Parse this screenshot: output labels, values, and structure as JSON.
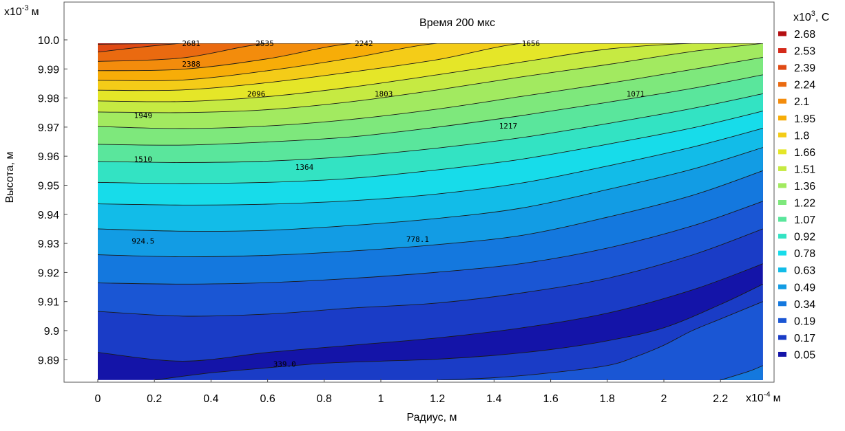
{
  "chart_data": {
    "type": "heatmap",
    "title": "Время 200 мкс",
    "xlabel": "Радиус, м",
    "ylabel": "Высота, м",
    "x_multiplier": "x10",
    "x_multiplier_exp": "-4",
    "x_multiplier_unit": "м",
    "y_multiplier": "x10",
    "y_multiplier_exp": "-3",
    "y_multiplier_unit": "м",
    "xlim": [
      -0.14,
      2.35
    ],
    "ylim": [
      9.883,
      10.0
    ],
    "x_ticks": [
      "0",
      "0.2",
      "0.4",
      "0.6",
      "0.8",
      "1",
      "1.2",
      "1.4",
      "1.6",
      "1.8",
      "2",
      "2.2"
    ],
    "x_tick_values": [
      0,
      0.2,
      0.4,
      0.6,
      0.8,
      1.0,
      1.2,
      1.4,
      1.6,
      1.8,
      2.0,
      2.2
    ],
    "y_ticks": [
      "10.0",
      "9.99",
      "9.98",
      "9.97",
      "9.96",
      "9.95",
      "9.94",
      "9.93",
      "9.92",
      "9.91",
      "9.9",
      "9.89"
    ],
    "y_tick_values": [
      10.0,
      9.99,
      9.98,
      9.97,
      9.96,
      9.95,
      9.94,
      9.93,
      9.92,
      9.91,
      9.9,
      9.89
    ],
    "data_x_range": [
      0,
      2.35
    ],
    "data_y_range": [
      9.883,
      9.9988
    ],
    "colorbar": {
      "unit_base": "x10",
      "unit_exp": "3",
      "unit_suffix": ", С",
      "labels": [
        "2.68",
        "2.53",
        "2.39",
        "2.24",
        "2.1",
        "1.95",
        "1.8",
        "1.66",
        "1.51",
        "1.36",
        "1.22",
        "1.07",
        "0.92",
        "0.78",
        "0.63",
        "0.49",
        "0.34",
        "0.19",
        "0.17",
        "0.05"
      ],
      "colors": [
        "#b40f12",
        "#d42a1a",
        "#e04a14",
        "#ea6a10",
        "#f38c0c",
        "#f7ad08",
        "#f4cc18",
        "#e5e628",
        "#c6ea42",
        "#a2ea60",
        "#7ee87c",
        "#5ae69c",
        "#33e3c3",
        "#17dcea",
        "#12bce8",
        "#129ce4",
        "#1478de",
        "#1a56d4",
        "#1a3cc6",
        "#1414a8"
      ]
    },
    "field": {
      "levels": [
        2681,
        2535,
        2388,
        2242,
        2096,
        1949,
        1803,
        1656,
        1510,
        1364,
        1217,
        1071,
        924.5,
        778.1,
        631.7,
        485.3,
        339.0,
        192.6
      ],
      "level_x": [
        0,
        0.3,
        0.6,
        0.9,
        1.2,
        1.5,
        1.8,
        2.1,
        2.35
      ],
      "level_y": [
        [
          9.9985,
          9.9988,
          9.9988,
          9.9988,
          9.9988,
          9.9988,
          9.9988,
          9.9988,
          9.9988
        ],
        [
          9.9958,
          9.9988,
          9.9988,
          9.9988,
          9.9988,
          9.9988,
          9.9988,
          9.9988,
          9.9988
        ],
        [
          9.9926,
          9.9938,
          9.9988,
          9.9988,
          9.9988,
          9.9988,
          9.9988,
          9.9988,
          9.9988
        ],
        [
          9.9894,
          9.9899,
          9.9935,
          9.9988,
          9.9988,
          9.9988,
          9.9988,
          9.9988,
          9.9988
        ],
        [
          9.9861,
          9.9862,
          9.9894,
          9.9938,
          9.9988,
          9.9988,
          9.9988,
          9.9988,
          9.9988
        ],
        [
          9.9827,
          9.9828,
          9.9853,
          9.989,
          9.9932,
          9.9988,
          9.9988,
          9.9988,
          9.9988
        ],
        [
          9.979,
          9.9788,
          9.9805,
          9.9838,
          9.988,
          9.9924,
          9.9968,
          9.9988,
          9.9988
        ],
        [
          9.9752,
          9.975,
          9.976,
          9.9788,
          9.9828,
          9.9873,
          9.9915,
          9.996,
          9.9988
        ],
        [
          9.9702,
          9.9695,
          9.9704,
          9.9727,
          9.9762,
          9.9806,
          9.985,
          9.9898,
          9.994
        ],
        [
          9.9641,
          9.9638,
          9.9649,
          9.9667,
          9.97,
          9.974,
          9.9785,
          9.9833,
          9.988
        ],
        [
          9.9582,
          9.9578,
          9.9583,
          9.96,
          9.9628,
          9.9664,
          9.9712,
          9.9764,
          9.9815
        ],
        [
          9.951,
          9.9506,
          9.951,
          9.9524,
          9.9553,
          9.959,
          9.9641,
          9.9697,
          9.9755
        ],
        [
          9.9436,
          9.9432,
          9.9435,
          9.9447,
          9.947,
          9.9508,
          9.9566,
          9.9631,
          9.9696
        ],
        [
          9.935,
          9.9342,
          9.9345,
          9.9362,
          9.9386,
          9.9422,
          9.9485,
          9.9555,
          9.963
        ],
        [
          9.9261,
          9.9254,
          9.9259,
          9.9274,
          9.9296,
          9.9328,
          9.939,
          9.9465,
          9.955
        ],
        [
          9.9164,
          9.916,
          9.9165,
          9.918,
          9.9201,
          9.9231,
          9.9284,
          9.936,
          9.9445
        ],
        [
          9.9066,
          9.905,
          9.9057,
          9.9078,
          9.9095,
          9.913,
          9.918,
          9.926,
          9.935
        ],
        [
          9.8925,
          9.8895,
          9.8925,
          9.895,
          9.8975,
          9.901,
          9.906,
          9.914,
          9.923
        ]
      ],
      "bottom_tail": [
        {
          "x": [
            0.2,
            0.4,
            0.6,
            0.8,
            1.0,
            1.2,
            1.4,
            1.6,
            1.8,
            2.0,
            2.2,
            2.35
          ],
          "y": [
            9.883,
            9.8855,
            9.8872,
            9.8888,
            9.8895,
            9.8902,
            9.8915,
            9.8935,
            9.8965,
            9.901,
            9.909,
            9.916
          ]
        },
        {
          "x": [
            1.2,
            1.4,
            1.6,
            1.8,
            1.9,
            2.0,
            2.1,
            2.2,
            2.35
          ],
          "y": [
            9.883,
            9.8838,
            9.8855,
            9.888,
            9.891,
            9.895,
            9.9,
            9.904,
            9.91
          ]
        },
        {
          "x": [
            2.2,
            2.3,
            2.35
          ],
          "y": [
            9.883,
            9.886,
            9.888
          ]
        }
      ]
    },
    "contour_labels": [
      {
        "text": "2681",
        "x": 0.33,
        "y": 9.9988
      },
      {
        "text": "2535",
        "x": 0.59,
        "y": 9.9988
      },
      {
        "text": "2242",
        "x": 0.94,
        "y": 9.9988
      },
      {
        "text": "1656",
        "x": 1.53,
        "y": 9.9988
      },
      {
        "text": "2388",
        "x": 0.33,
        "y": 9.9917
      },
      {
        "text": "2096",
        "x": 0.56,
        "y": 9.9814
      },
      {
        "text": "1803",
        "x": 1.01,
        "y": 9.9814
      },
      {
        "text": "1071",
        "x": 1.9,
        "y": 9.9814
      },
      {
        "text": "1949",
        "x": 0.16,
        "y": 9.974
      },
      {
        "text": "1217",
        "x": 1.45,
        "y": 9.9705
      },
      {
        "text": "1510",
        "x": 0.16,
        "y": 9.959
      },
      {
        "text": "1364",
        "x": 0.73,
        "y": 9.9563
      },
      {
        "text": "924.5",
        "x": 0.16,
        "y": 9.9308
      },
      {
        "text": "778.1",
        "x": 1.13,
        "y": 9.9315
      },
      {
        "text": "339.0",
        "x": 0.66,
        "y": 9.8885
      }
    ],
    "grid": false,
    "legend_placement": "right colorbar"
  }
}
